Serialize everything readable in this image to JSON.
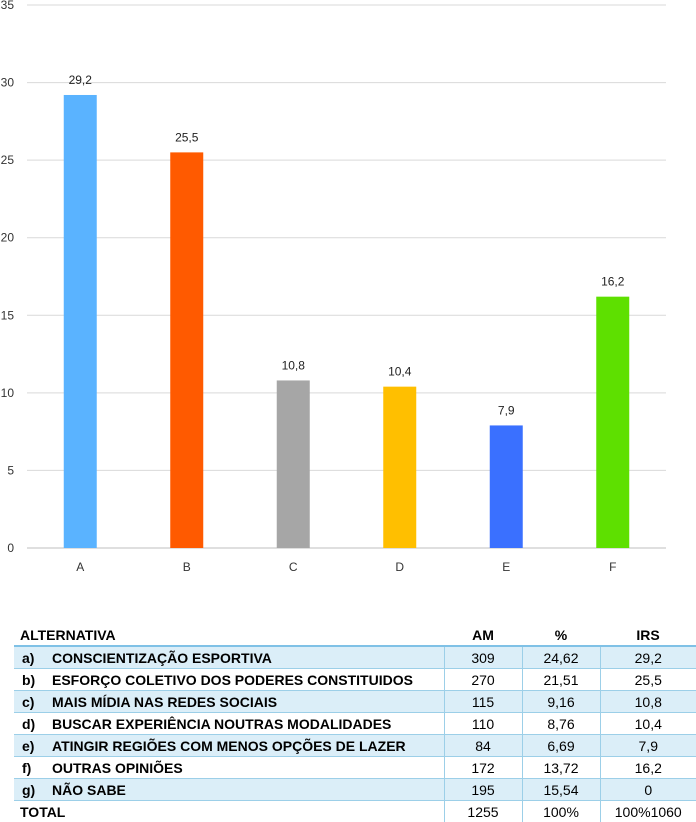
{
  "chart_data": {
    "type": "bar",
    "categories": [
      "A",
      "B",
      "C",
      "D",
      "E",
      "F"
    ],
    "values": [
      29.2,
      25.5,
      10.8,
      10.4,
      7.9,
      16.2
    ],
    "data_labels": [
      "29,2",
      "25,5",
      "10,8",
      "10,4",
      "7,9",
      "16,2"
    ],
    "colors": [
      "#5ab3ff",
      "#ff5a00",
      "#a6a6a6",
      "#ffbf00",
      "#3a70ff",
      "#5ee000"
    ],
    "y_ticks": [
      0,
      5,
      10,
      15,
      20,
      25,
      30,
      35
    ],
    "ylim": [
      0,
      35
    ],
    "grid": true,
    "legend": false
  },
  "table": {
    "headers": {
      "alternative": "ALTERNATIVA",
      "am": "AM",
      "pct": "%",
      "irs": "IRS"
    },
    "rows": [
      {
        "letter": "a)",
        "text": "CONSCIENTIZAÇÃO ESPORTIVA",
        "am": "309",
        "pct": "24,62",
        "irs": "29,2"
      },
      {
        "letter": "b)",
        "text": "ESFORÇO COLETIVO DOS PODERES CONSTITUIDOS",
        "am": "270",
        "pct": "21,51",
        "irs": "25,5"
      },
      {
        "letter": "c)",
        "text": "MAIS MÍDIA NAS REDES SOCIAIS",
        "am": "115",
        "pct": "9,16",
        "irs": "10,8"
      },
      {
        "letter": "d)",
        "text": "BUSCAR EXPERIÊNCIA NOUTRAS MODALIDADES",
        "am": "110",
        "pct": "8,76",
        "irs": "10,4"
      },
      {
        "letter": "e)",
        "text": "ATINGIR REGIÕES COM MENOS OPÇÕES DE LAZER",
        "am": "84",
        "pct": "6,69",
        "irs": "7,9"
      },
      {
        "letter": "f)",
        "text": "OUTRAS OPINIÕES",
        "am": "172",
        "pct": "13,72",
        "irs": "16,2"
      },
      {
        "letter": "g)",
        "text": "NÃO SABE",
        "am": "195",
        "pct": "15,54",
        "irs": "0"
      }
    ],
    "total": {
      "label": "TOTAL",
      "am": "1255",
      "pct": "100%",
      "irs": "100%1060"
    }
  }
}
